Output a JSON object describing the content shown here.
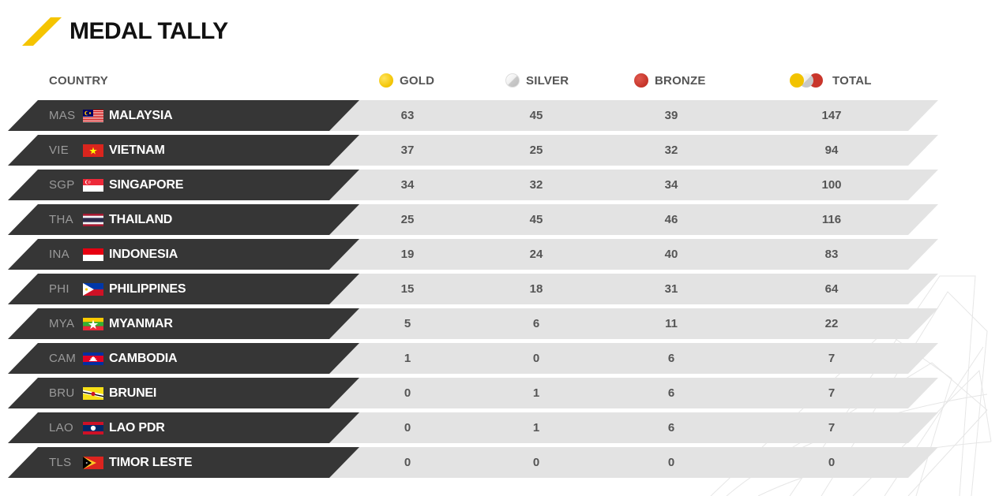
{
  "title": "MEDAL TALLY",
  "colors": {
    "accent": "#f5c400",
    "row_dark": "#363636",
    "row_light": "#e3e3e3",
    "gold": "#f2c300",
    "silver": "#d0d0d0",
    "bronze": "#c9362b"
  },
  "header": {
    "country": "COUNTRY",
    "gold": "GOLD",
    "silver": "SILVER",
    "bronze": "BRONZE",
    "total": "TOTAL"
  },
  "rows": [
    {
      "code": "MAS",
      "name": "MALAYSIA",
      "flag": "flag-malaysia",
      "gold": "63",
      "silver": "45",
      "bronze": "39",
      "total": "147"
    },
    {
      "code": "VIE",
      "name": "VIETNAM",
      "flag": "flag-vietnam",
      "gold": "37",
      "silver": "25",
      "bronze": "32",
      "total": "94"
    },
    {
      "code": "SGP",
      "name": "SINGAPORE",
      "flag": "flag-singapore",
      "gold": "34",
      "silver": "32",
      "bronze": "34",
      "total": "100"
    },
    {
      "code": "THA",
      "name": "THAILAND",
      "flag": "flag-thailand",
      "gold": "25",
      "silver": "45",
      "bronze": "46",
      "total": "116"
    },
    {
      "code": "INA",
      "name": "INDONESIA",
      "flag": "flag-indonesia",
      "gold": "19",
      "silver": "24",
      "bronze": "40",
      "total": "83"
    },
    {
      "code": "PHI",
      "name": "PHILIPPINES",
      "flag": "flag-philippines",
      "gold": "15",
      "silver": "18",
      "bronze": "31",
      "total": "64"
    },
    {
      "code": "MYA",
      "name": "MYANMAR",
      "flag": "flag-myanmar",
      "gold": "5",
      "silver": "6",
      "bronze": "11",
      "total": "22"
    },
    {
      "code": "CAM",
      "name": "CAMBODIA",
      "flag": "flag-cambodia",
      "gold": "1",
      "silver": "0",
      "bronze": "6",
      "total": "7"
    },
    {
      "code": "BRU",
      "name": "BRUNEI",
      "flag": "flag-brunei",
      "gold": "0",
      "silver": "1",
      "bronze": "6",
      "total": "7"
    },
    {
      "code": "LAO",
      "name": "LAO PDR",
      "flag": "flag-laos",
      "gold": "0",
      "silver": "1",
      "bronze": "6",
      "total": "7"
    },
    {
      "code": "TLS",
      "name": "TIMOR LESTE",
      "flag": "flag-timor-leste",
      "gold": "0",
      "silver": "0",
      "bronze": "0",
      "total": "0"
    }
  ]
}
